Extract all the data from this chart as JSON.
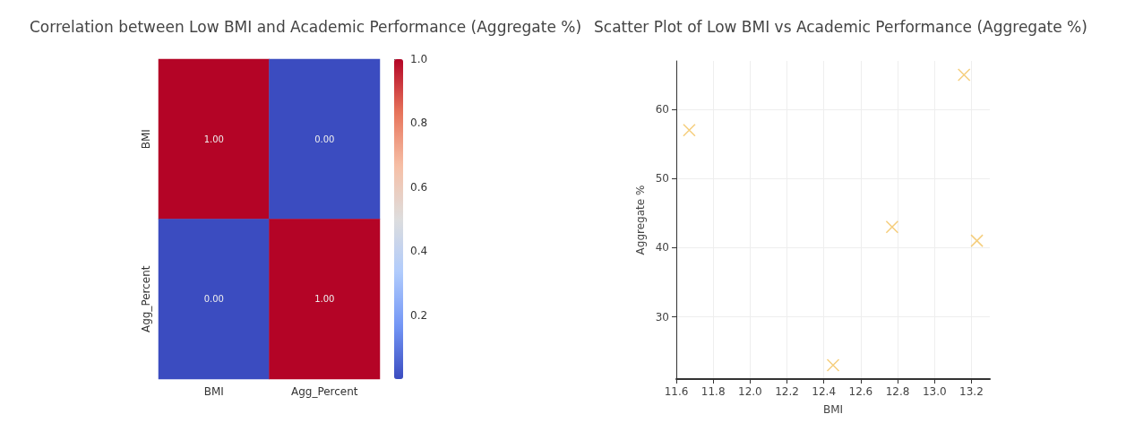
{
  "chart_data": [
    {
      "type": "heatmap",
      "title": "Correlation between Low BMI and Academic Performance (Aggregate %)",
      "categories": [
        "BMI",
        "Agg_Percent"
      ],
      "y_categories": [
        "BMI",
        "Agg_Percent"
      ],
      "cells": [
        [
          1,
          0
        ],
        [
          0,
          1
        ]
      ],
      "cell_labels": [
        [
          "1.00",
          "0.00"
        ],
        [
          "0.00",
          "1.00"
        ]
      ],
      "clim": [
        0,
        1
      ],
      "cticks": [
        0.2,
        0.4,
        0.6,
        0.8,
        {
          "value": 1,
          "label": "1.0"
        }
      ]
    },
    {
      "type": "scatter",
      "title": "Scatter Plot of Low BMI vs Academic Performance (Aggregate %)",
      "xlabel": "BMI",
      "ylabel": "Aggregate %",
      "series": [
        {
          "color": "#f2c25c",
          "x": [
            11.67,
            12.45,
            12.77,
            13.16,
            13.23
          ],
          "values": [
            57,
            23,
            43,
            65,
            41
          ]
        }
      ],
      "xlim": [
        11.6,
        13.3
      ],
      "xticks": [
        11.6,
        11.8,
        {
          "value": 12,
          "label": "12.0"
        },
        12.2,
        12.4,
        12.6,
        12.8,
        {
          "value": 13,
          "label": "13.0"
        },
        13.2
      ],
      "ylim": [
        21,
        67
      ],
      "yticks": [
        30,
        40,
        50,
        60
      ],
      "grid": true,
      "marker": "cross"
    }
  ]
}
